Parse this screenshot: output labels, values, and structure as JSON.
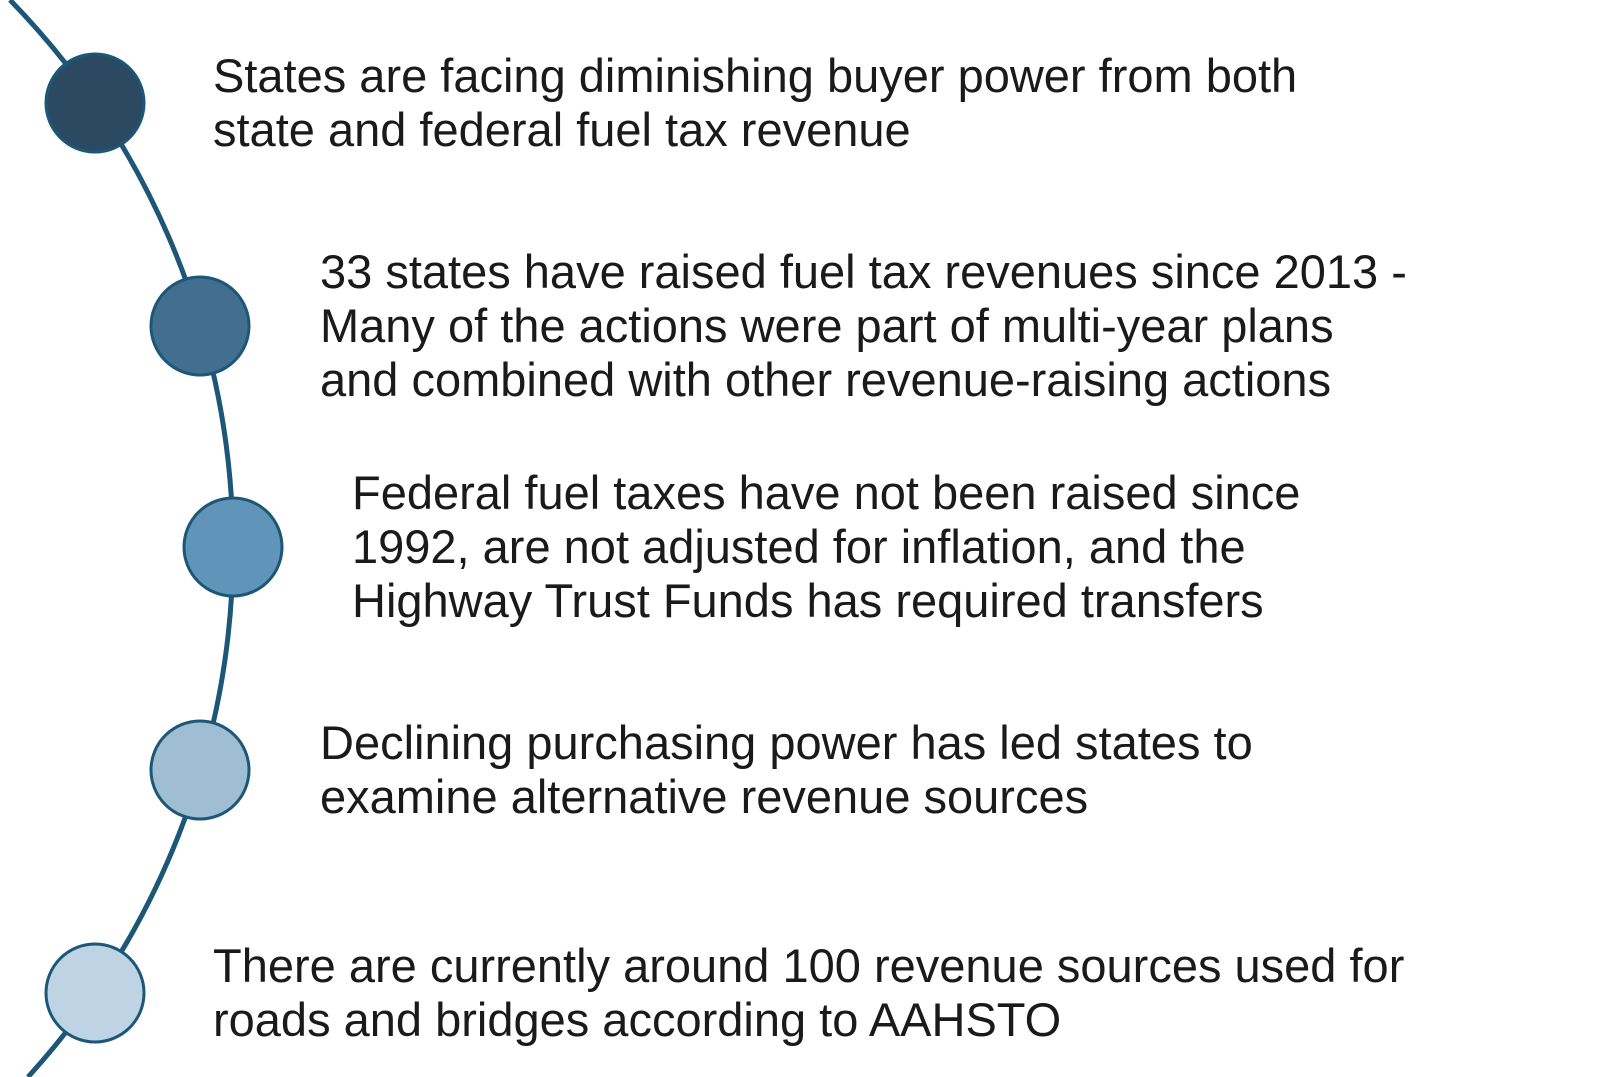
{
  "items": [
    {
      "lines": [
        "States are facing diminishing buyer power from both",
        "state and federal fuel tax revenue"
      ]
    },
    {
      "lines": [
        "33 states have raised fuel tax revenues since 2013 -",
        "Many of the actions were part of multi-year plans",
        "and combined with other revenue-raising actions"
      ]
    },
    {
      "lines": [
        "Federal fuel taxes have not been raised since",
        "1992, are not adjusted for inflation, and the",
        "Highway Trust Funds has required transfers"
      ]
    },
    {
      "lines": [
        "Declining purchasing power has led states to",
        "examine alternative revenue sources"
      ]
    },
    {
      "lines": [
        "There are currently around 100 revenue sources used for",
        "roads and bridges according to AAHSTO"
      ]
    }
  ]
}
